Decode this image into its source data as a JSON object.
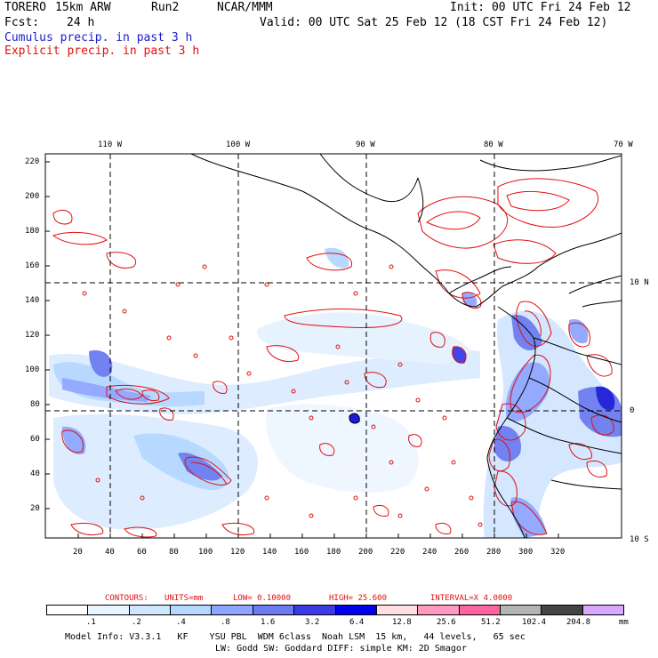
{
  "header": {
    "model": "TORERO",
    "resolution": "15km ARW",
    "run": "Run2",
    "org": "NCAR/MMM",
    "init": "Init: 00 UTC Fri 24 Feb 12",
    "fcst_label": "Fcst:",
    "fcst_value": "24 h",
    "valid": "Valid: 00 UTC Sat 25 Feb 12 (18 CST Fri 24 Feb 12)",
    "line3": "Cumulus precip. in past 3 h",
    "line4": "Explicit precip. in past 3 h"
  },
  "map": {
    "lon_labels": [
      "110 W",
      "100 W",
      "90 W",
      "80 W",
      "70 W"
    ],
    "lat_labels": [
      "10 N",
      "0",
      "10 S"
    ],
    "y_ticks": [
      "220",
      "200",
      "180",
      "160",
      "140",
      "120",
      "100",
      "80",
      "60",
      "40",
      "20"
    ],
    "x_ticks": [
      "20",
      "40",
      "60",
      "80",
      "100",
      "120",
      "140",
      "160",
      "180",
      "200",
      "220",
      "240",
      "260",
      "280",
      "300",
      "320"
    ]
  },
  "contour_info": {
    "label": "CONTOURS:",
    "units": "UNITS=mm",
    "low": "LOW= 0.10000",
    "high": "HIGH= 25.600",
    "interval": "INTERVAL=X 4.0000"
  },
  "colorbar": {
    "labels": [
      ".1",
      ".2",
      ".4",
      ".8",
      "1.6",
      "3.2",
      "6.4",
      "12.8",
      "25.6",
      "51.2",
      "102.4",
      "204.8"
    ],
    "units": "mm",
    "colors": [
      "#ffffff",
      "#e8f4ff",
      "#cfe6ff",
      "#b4d8ff",
      "#8ea6ff",
      "#6b7cf0",
      "#3b3be6",
      "#0000ee",
      "#ffe0e0",
      "#ff99c0",
      "#ff66a0",
      "#b4b4b4",
      "#444444",
      "#d8a8ff"
    ]
  },
  "footer": {
    "line1": "Model Info: V3.3.1   KF    YSU PBL  WDM 6class  Noah LSM  15 km,   44 levels,   65 sec",
    "line2": "LW: Godd SW: Goddard DIFF: simple KM: 2D Smagor"
  }
}
